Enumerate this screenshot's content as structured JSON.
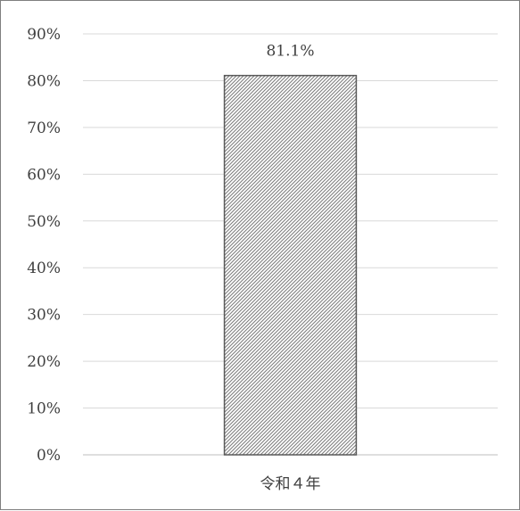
{
  "chart_data": {
    "type": "bar",
    "categories": [
      "令和４年"
    ],
    "values": [
      81.1
    ],
    "data_labels": [
      "81.1%"
    ],
    "ylim": [
      0,
      90
    ],
    "yticks": [
      0,
      10,
      20,
      30,
      40,
      50,
      60,
      70,
      80,
      90
    ],
    "ytick_labels": [
      "0%",
      "10%",
      "20%",
      "30%",
      "40%",
      "50%",
      "60%",
      "70%",
      "80%",
      "90%"
    ],
    "grid": true,
    "legend": "none",
    "bar_pattern": "diagonal-hatch",
    "colors": {
      "bar_stroke": "#595959",
      "hatch": "#7f7f7f",
      "grid": "#d9d9d9",
      "axis": "#bfbfbf",
      "text": "#404040"
    }
  }
}
